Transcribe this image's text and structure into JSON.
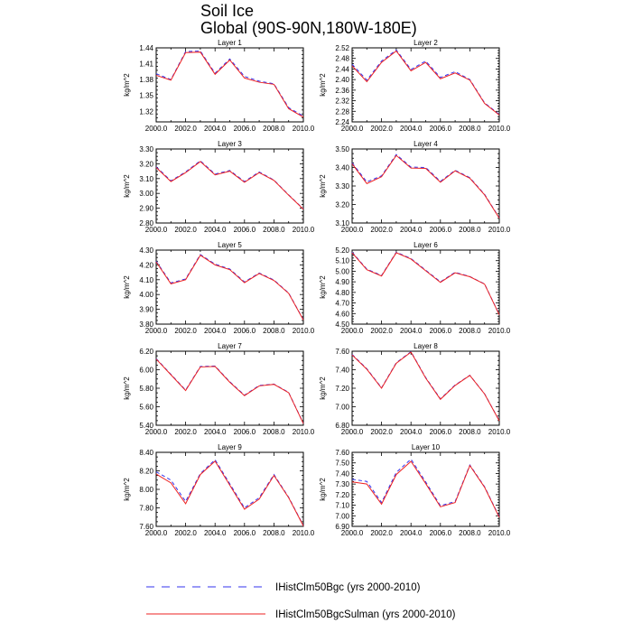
{
  "figure": {
    "title_line1": "Soil Ice",
    "title_line2": "Global (90S-90N,180W-180E)"
  },
  "legend": [
    {
      "label": "IHistClm50Bgc (yrs 2000-2010)",
      "color": "#3333ee",
      "style": "dashed"
    },
    {
      "label": "IHistClm50BgcSulman (yrs 2000-2010)",
      "color": "#ee2222",
      "style": "solid"
    }
  ],
  "chart_data": [
    {
      "type": "line",
      "title": "Layer 1",
      "ylabel": "kg/m^2",
      "x": [
        2000,
        2001,
        2002,
        2003,
        2004,
        2005,
        2006,
        2007,
        2008,
        2009,
        2010
      ],
      "xlim": [
        2000,
        2010
      ],
      "xticks": [
        "2000.0",
        "2002.0",
        "2004.0",
        "2006.0",
        "2008.0",
        "2010.0"
      ],
      "ylim": [
        1.3,
        1.44
      ],
      "yticks": [
        "1.32",
        "1.35",
        "1.38",
        "1.41",
        "1.44"
      ],
      "series": [
        {
          "name": "IHistClm50Bgc (yrs 2000-2010)",
          "color": "#3333ee",
          "dash": true,
          "values": [
            1.391,
            1.38,
            1.433,
            1.434,
            1.392,
            1.419,
            1.386,
            1.377,
            1.372,
            1.327,
            1.311
          ]
        },
        {
          "name": "IHistClm50BgcSulman (yrs 2000-2010)",
          "color": "#ee2222",
          "dash": false,
          "values": [
            1.388,
            1.379,
            1.431,
            1.432,
            1.39,
            1.417,
            1.383,
            1.375,
            1.371,
            1.325,
            1.309
          ]
        }
      ]
    },
    {
      "type": "line",
      "title": "Layer 2",
      "ylabel": "kg/m^2",
      "x": [
        2000,
        2001,
        2002,
        2003,
        2004,
        2005,
        2006,
        2007,
        2008,
        2009,
        2010
      ],
      "xlim": [
        2000,
        2010
      ],
      "xticks": [
        "2000.0",
        "2002.0",
        "2004.0",
        "2006.0",
        "2008.0",
        "2010.0"
      ],
      "ylim": [
        2.24,
        2.52
      ],
      "yticks": [
        "2.24",
        "2.28",
        "2.32",
        "2.36",
        "2.40",
        "2.44",
        "2.48",
        "2.52"
      ],
      "series": [
        {
          "name": "IHistClm50Bgc (yrs 2000-2010)",
          "color": "#3333ee",
          "dash": true,
          "values": [
            2.458,
            2.398,
            2.47,
            2.512,
            2.438,
            2.47,
            2.408,
            2.43,
            2.4,
            2.312,
            2.268
          ]
        },
        {
          "name": "IHistClm50BgcSulman (yrs 2000-2010)",
          "color": "#ee2222",
          "dash": false,
          "values": [
            2.452,
            2.392,
            2.465,
            2.508,
            2.433,
            2.465,
            2.403,
            2.425,
            2.398,
            2.31,
            2.266
          ]
        }
      ]
    },
    {
      "type": "line",
      "title": "Layer 3",
      "ylabel": "kg/m^2",
      "x": [
        2000,
        2001,
        2002,
        2003,
        2004,
        2005,
        2006,
        2007,
        2008,
        2009,
        2010
      ],
      "xlim": [
        2000,
        2010
      ],
      "xticks": [
        "2000.0",
        "2002.0",
        "2004.0",
        "2006.0",
        "2008.0",
        "2010.0"
      ],
      "ylim": [
        2.8,
        3.3
      ],
      "yticks": [
        "2.80",
        "2.90",
        "3.00",
        "3.10",
        "3.20",
        "3.30"
      ],
      "series": [
        {
          "name": "IHistClm50Bgc (yrs 2000-2010)",
          "color": "#3333ee",
          "dash": true,
          "values": [
            3.18,
            3.085,
            3.145,
            3.22,
            3.13,
            3.155,
            3.08,
            3.145,
            3.09,
            2.99,
            2.895
          ]
        },
        {
          "name": "IHistClm50BgcSulman (yrs 2000-2010)",
          "color": "#ee2222",
          "dash": false,
          "values": [
            3.175,
            3.08,
            3.14,
            3.215,
            3.125,
            3.15,
            3.075,
            3.14,
            3.088,
            2.988,
            2.893
          ]
        }
      ]
    },
    {
      "type": "line",
      "title": "Layer 4",
      "ylabel": "kg/m^2",
      "x": [
        2000,
        2001,
        2002,
        2003,
        2004,
        2005,
        2006,
        2007,
        2008,
        2009,
        2010
      ],
      "xlim": [
        2000,
        2010
      ],
      "xticks": [
        "2000.0",
        "2002.0",
        "2004.0",
        "2006.0",
        "2008.0",
        "2010.0"
      ],
      "ylim": [
        3.1,
        3.5
      ],
      "yticks": [
        "3.10",
        "3.20",
        "3.30",
        "3.40",
        "3.50"
      ],
      "series": [
        {
          "name": "IHistClm50Bgc (yrs 2000-2010)",
          "color": "#3333ee",
          "dash": true,
          "values": [
            3.425,
            3.322,
            3.355,
            3.47,
            3.402,
            3.4,
            3.325,
            3.385,
            3.345,
            3.255,
            3.128
          ]
        },
        {
          "name": "IHistClm50BgcSulman (yrs 2000-2010)",
          "color": "#ee2222",
          "dash": false,
          "values": [
            3.42,
            3.313,
            3.35,
            3.465,
            3.397,
            3.395,
            3.32,
            3.382,
            3.342,
            3.252,
            3.126
          ]
        }
      ]
    },
    {
      "type": "line",
      "title": "Layer 5",
      "ylabel": "kg/m^2",
      "x": [
        2000,
        2001,
        2002,
        2003,
        2004,
        2005,
        2006,
        2007,
        2008,
        2009,
        2010
      ],
      "xlim": [
        2000,
        2010
      ],
      "xticks": [
        "2000.0",
        "2002.0",
        "2004.0",
        "2006.0",
        "2008.0",
        "2010.0"
      ],
      "ylim": [
        3.8,
        4.3
      ],
      "yticks": [
        "3.80",
        "3.90",
        "4.00",
        "4.10",
        "4.20",
        "4.30"
      ],
      "series": [
        {
          "name": "IHistClm50Bgc (yrs 2000-2010)",
          "color": "#3333ee",
          "dash": true,
          "values": [
            4.225,
            4.078,
            4.105,
            4.27,
            4.205,
            4.172,
            4.085,
            4.145,
            4.098,
            4.01,
            3.83
          ]
        },
        {
          "name": "IHistClm50BgcSulman (yrs 2000-2010)",
          "color": "#ee2222",
          "dash": false,
          "values": [
            4.22,
            4.072,
            4.1,
            4.265,
            4.2,
            4.168,
            4.08,
            4.142,
            4.095,
            4.008,
            3.828
          ]
        }
      ]
    },
    {
      "type": "line",
      "title": "Layer 6",
      "ylabel": "kg/m^2",
      "x": [
        2000,
        2001,
        2002,
        2003,
        2004,
        2005,
        2006,
        2007,
        2008,
        2009,
        2010
      ],
      "xlim": [
        2000,
        2010
      ],
      "xticks": [
        "2000.0",
        "2002.0",
        "2004.0",
        "2006.0",
        "2008.0",
        "2010.0"
      ],
      "ylim": [
        4.5,
        5.2
      ],
      "yticks": [
        "4.50",
        "4.60",
        "4.70",
        "4.80",
        "4.90",
        "5.00",
        "5.10",
        "5.20"
      ],
      "series": [
        {
          "name": "IHistClm50Bgc (yrs 2000-2010)",
          "color": "#3333ee",
          "dash": true,
          "values": [
            5.18,
            5.02,
            4.96,
            5.18,
            5.12,
            5.01,
            4.9,
            4.99,
            4.95,
            4.88,
            4.59
          ]
        },
        {
          "name": "IHistClm50BgcSulman (yrs 2000-2010)",
          "color": "#ee2222",
          "dash": false,
          "values": [
            5.175,
            5.015,
            4.955,
            5.175,
            5.115,
            5.005,
            4.895,
            4.985,
            4.948,
            4.878,
            4.588
          ]
        }
      ]
    },
    {
      "type": "line",
      "title": "Layer 7",
      "ylabel": "kg/m^2",
      "x": [
        2000,
        2001,
        2002,
        2003,
        2004,
        2005,
        2006,
        2007,
        2008,
        2009,
        2010
      ],
      "xlim": [
        2000,
        2010
      ],
      "xticks": [
        "2000.0",
        "2002.0",
        "2004.0",
        "2006.0",
        "2008.0",
        "2010.0"
      ],
      "ylim": [
        5.4,
        6.2
      ],
      "yticks": [
        "5.40",
        "5.60",
        "5.80",
        "6.00",
        "6.20"
      ],
      "series": [
        {
          "name": "IHistClm50Bgc (yrs 2000-2010)",
          "color": "#3333ee",
          "dash": true,
          "values": [
            6.12,
            5.95,
            5.78,
            6.035,
            6.04,
            5.87,
            5.725,
            5.83,
            5.845,
            5.755,
            5.42
          ]
        },
        {
          "name": "IHistClm50BgcSulman (yrs 2000-2010)",
          "color": "#ee2222",
          "dash": false,
          "values": [
            6.115,
            5.945,
            5.775,
            6.03,
            6.035,
            5.865,
            5.72,
            5.825,
            5.842,
            5.752,
            5.418
          ]
        }
      ]
    },
    {
      "type": "line",
      "title": "Layer 8",
      "ylabel": "kg/m^2",
      "x": [
        2000,
        2001,
        2002,
        2003,
        2004,
        2005,
        2006,
        2007,
        2008,
        2009,
        2010
      ],
      "xlim": [
        2000,
        2010
      ],
      "xticks": [
        "2000.0",
        "2002.0",
        "2004.0",
        "2006.0",
        "2008.0",
        "2010.0"
      ],
      "ylim": [
        6.8,
        7.6
      ],
      "yticks": [
        "6.80",
        "7.00",
        "7.20",
        "7.40",
        "7.60"
      ],
      "series": [
        {
          "name": "IHistClm50Bgc (yrs 2000-2010)",
          "color": "#3333ee",
          "dash": true,
          "values": [
            7.565,
            7.41,
            7.205,
            7.475,
            7.595,
            7.315,
            7.085,
            7.235,
            7.34,
            7.14,
            6.85
          ]
        },
        {
          "name": "IHistClm50BgcSulman (yrs 2000-2010)",
          "color": "#ee2222",
          "dash": false,
          "values": [
            7.56,
            7.405,
            7.2,
            7.47,
            7.59,
            7.31,
            7.08,
            7.23,
            7.338,
            7.138,
            6.848
          ]
        }
      ]
    },
    {
      "type": "line",
      "title": "Layer 9",
      "ylabel": "kg/m^2",
      "x": [
        2000,
        2001,
        2002,
        2003,
        2004,
        2005,
        2006,
        2007,
        2008,
        2009,
        2010
      ],
      "xlim": [
        2000,
        2010
      ],
      "xticks": [
        "2000.0",
        "2002.0",
        "2004.0",
        "2006.0",
        "2008.0",
        "2010.0"
      ],
      "ylim": [
        7.6,
        8.4
      ],
      "yticks": [
        "7.60",
        "7.80",
        "8.00",
        "8.20",
        "8.40"
      ],
      "series": [
        {
          "name": "IHistClm50Bgc (yrs 2000-2010)",
          "color": "#3333ee",
          "dash": true,
          "values": [
            8.19,
            8.1,
            7.87,
            8.17,
            8.32,
            8.06,
            7.8,
            7.91,
            8.16,
            7.915,
            7.61
          ]
        },
        {
          "name": "IHistClm50BgcSulman (yrs 2000-2010)",
          "color": "#ee2222",
          "dash": false,
          "values": [
            8.165,
            8.07,
            7.845,
            8.16,
            8.305,
            8.045,
            7.785,
            7.895,
            8.15,
            7.91,
            7.605
          ]
        }
      ]
    },
    {
      "type": "line",
      "title": "Layer 10",
      "ylabel": "kg/m^2",
      "x": [
        2000,
        2001,
        2002,
        2003,
        2004,
        2005,
        2006,
        2007,
        2008,
        2009,
        2010
      ],
      "xlim": [
        2000,
        2010
      ],
      "xticks": [
        "2000.0",
        "2002.0",
        "2004.0",
        "2006.0",
        "2008.0",
        "2010.0"
      ],
      "ylim": [
        6.9,
        7.6
      ],
      "yticks": [
        "6.90",
        "7.00",
        "7.10",
        "7.20",
        "7.30",
        "7.40",
        "7.50",
        "7.60"
      ],
      "series": [
        {
          "name": "IHistClm50Bgc (yrs 2000-2010)",
          "color": "#3333ee",
          "dash": true,
          "values": [
            7.345,
            7.325,
            7.125,
            7.41,
            7.535,
            7.32,
            7.095,
            7.135,
            7.48,
            7.275,
            6.99
          ]
        },
        {
          "name": "IHistClm50BgcSulman (yrs 2000-2010)",
          "color": "#ee2222",
          "dash": false,
          "values": [
            7.32,
            7.3,
            7.11,
            7.39,
            7.515,
            7.305,
            7.085,
            7.125,
            7.475,
            7.27,
            6.985
          ]
        }
      ]
    }
  ]
}
